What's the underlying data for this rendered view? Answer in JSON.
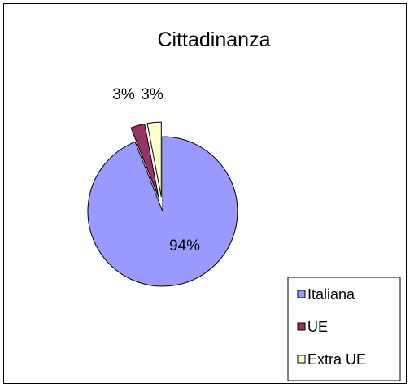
{
  "chart_data": {
    "type": "pie",
    "title": "Cittadinanza",
    "categories": [
      "Italiana",
      "UE",
      "Extra UE"
    ],
    "values": [
      94,
      3,
      3
    ],
    "data_labels": [
      "94%",
      "3%",
      "3%"
    ],
    "colors": [
      "#9999ff",
      "#993366",
      "#ffffcc"
    ],
    "exploded": [
      false,
      true,
      true
    ],
    "legend_position": "bottom-right",
    "grid": false
  }
}
